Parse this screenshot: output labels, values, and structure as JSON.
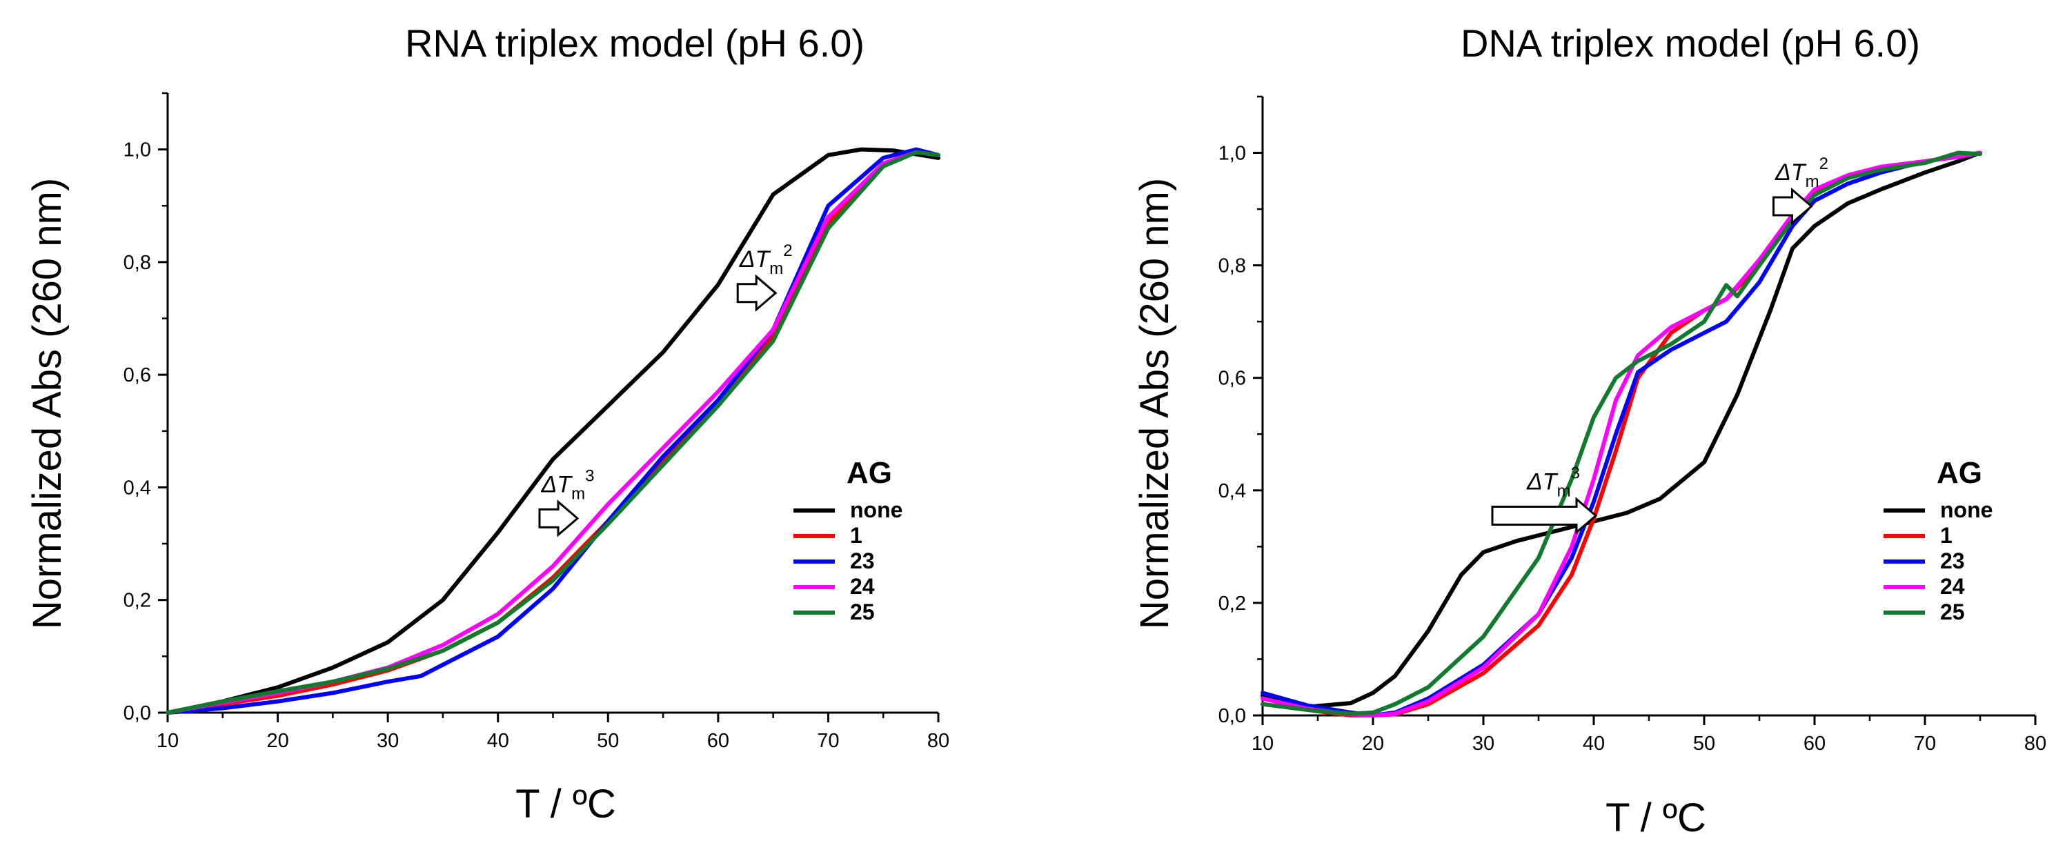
{
  "chart_data": [
    {
      "type": "line",
      "title": "RNA triplex model (pH 6.0)",
      "xlabel": "T / ºC",
      "ylabel": "Normalized Abs (260 nm)",
      "xlim": [
        10,
        80
      ],
      "ylim": [
        0,
        1.1
      ],
      "xticks": [
        "10",
        "20",
        "30",
        "40",
        "50",
        "60",
        "70",
        "80"
      ],
      "yticks": [
        "0,0",
        "0,2",
        "0,4",
        "0,6",
        "0,8",
        "1,0"
      ],
      "legend_title": "AG",
      "annotations": [
        {
          "label": "ΔT",
          "sub": "m",
          "sup": "2",
          "x": 63.5,
          "y": 0.745
        },
        {
          "label": "ΔT",
          "sub": "m",
          "sup": "3",
          "x": 45.5,
          "y": 0.345
        }
      ],
      "series": [
        {
          "name": "none",
          "color": "#000000",
          "x": [
            10,
            15,
            20,
            25,
            30,
            35,
            40,
            45,
            50,
            55,
            60,
            65,
            70,
            73,
            76,
            80
          ],
          "values": [
            0.0,
            0.02,
            0.045,
            0.08,
            0.125,
            0.2,
            0.32,
            0.45,
            0.545,
            0.64,
            0.76,
            0.92,
            0.99,
            1.0,
            0.998,
            0.985
          ]
        },
        {
          "name": "1",
          "color": "#ff0000",
          "x": [
            10,
            15,
            20,
            25,
            30,
            35,
            40,
            45,
            50,
            55,
            60,
            65,
            70,
            75,
            78,
            80
          ],
          "values": [
            0.0,
            0.015,
            0.03,
            0.05,
            0.075,
            0.11,
            0.16,
            0.24,
            0.34,
            0.45,
            0.55,
            0.67,
            0.87,
            0.975,
            0.995,
            0.99
          ]
        },
        {
          "name": "23",
          "color": "#0000ff",
          "x": [
            10,
            15,
            20,
            25,
            30,
            33,
            35,
            40,
            45,
            50,
            55,
            60,
            65,
            70,
            75,
            78,
            80
          ],
          "values": [
            0.0,
            0.008,
            0.02,
            0.035,
            0.055,
            0.065,
            0.085,
            0.135,
            0.22,
            0.34,
            0.455,
            0.555,
            0.68,
            0.9,
            0.985,
            1.0,
            0.99
          ]
        },
        {
          "name": "24",
          "color": "#ff00ff",
          "x": [
            10,
            15,
            20,
            25,
            30,
            35,
            40,
            45,
            50,
            55,
            60,
            65,
            70,
            75,
            78,
            80
          ],
          "values": [
            0.0,
            0.018,
            0.035,
            0.055,
            0.08,
            0.12,
            0.175,
            0.26,
            0.37,
            0.47,
            0.57,
            0.68,
            0.88,
            0.975,
            0.995,
            0.99
          ]
        },
        {
          "name": "25",
          "color": "#117a2e",
          "x": [
            10,
            15,
            20,
            25,
            30,
            35,
            40,
            45,
            50,
            55,
            60,
            65,
            70,
            75,
            78,
            80
          ],
          "values": [
            0.0,
            0.02,
            0.038,
            0.055,
            0.078,
            0.11,
            0.16,
            0.235,
            0.335,
            0.44,
            0.545,
            0.66,
            0.86,
            0.97,
            0.995,
            0.99
          ]
        }
      ]
    },
    {
      "type": "line",
      "title": "DNA triplex model (pH 6.0)",
      "xlabel": "T / ºC",
      "ylabel": "Normalized Abs (260 nm)",
      "xlim": [
        10,
        80
      ],
      "ylim": [
        0,
        1.1
      ],
      "xticks": [
        "10",
        "20",
        "30",
        "40",
        "50",
        "60",
        "70",
        "80"
      ],
      "yticks": [
        "0,0",
        "0,2",
        "0,4",
        "0,6",
        "0,8",
        "1,0"
      ],
      "legend_title": "AG",
      "annotations": [
        {
          "label": "ΔT",
          "sub": "m",
          "sup": "2",
          "x": 58.0,
          "y": 0.905
        },
        {
          "label": "ΔT",
          "sub": "m",
          "sup": "3",
          "x": 35.5,
          "y": 0.355
        }
      ],
      "series": [
        {
          "name": "none",
          "color": "#000000",
          "x": [
            10,
            14,
            18,
            20,
            22,
            25,
            28,
            30,
            33,
            36,
            40,
            43,
            46,
            50,
            53,
            56,
            58,
            60,
            63,
            66,
            70,
            73,
            75
          ],
          "values": [
            0.035,
            0.015,
            0.022,
            0.04,
            0.07,
            0.15,
            0.25,
            0.29,
            0.31,
            0.325,
            0.345,
            0.36,
            0.385,
            0.45,
            0.57,
            0.72,
            0.83,
            0.87,
            0.91,
            0.935,
            0.965,
            0.985,
            1.0
          ]
        },
        {
          "name": "1",
          "color": "#ff0000",
          "x": [
            10,
            14,
            18,
            20,
            22,
            25,
            30,
            35,
            38,
            40,
            42,
            44,
            47,
            50,
            52,
            55,
            58,
            60,
            63,
            66,
            70,
            73,
            75
          ],
          "values": [
            0.02,
            0.01,
            0.0,
            0.0,
            0.002,
            0.02,
            0.075,
            0.16,
            0.25,
            0.35,
            0.47,
            0.6,
            0.68,
            0.72,
            0.74,
            0.8,
            0.885,
            0.93,
            0.96,
            0.975,
            0.985,
            0.993,
            1.0
          ]
        },
        {
          "name": "23",
          "color": "#0000ff",
          "x": [
            10,
            14,
            18,
            20,
            22,
            25,
            30,
            35,
            38,
            40,
            42,
            44,
            47,
            50,
            52,
            55,
            58,
            60,
            63,
            66,
            70,
            73,
            75
          ],
          "values": [
            0.04,
            0.018,
            0.005,
            0.0,
            0.005,
            0.03,
            0.09,
            0.18,
            0.28,
            0.38,
            0.5,
            0.61,
            0.65,
            0.68,
            0.7,
            0.77,
            0.87,
            0.915,
            0.945,
            0.965,
            0.985,
            0.993,
            1.0
          ]
        },
        {
          "name": "24",
          "color": "#ff00ff",
          "x": [
            10,
            14,
            18,
            20,
            22,
            25,
            30,
            35,
            38,
            40,
            42,
            44,
            47,
            50,
            52,
            55,
            58,
            60,
            63,
            66,
            70,
            73,
            75
          ],
          "values": [
            0.03,
            0.012,
            0.002,
            0.0,
            0.003,
            0.025,
            0.085,
            0.18,
            0.3,
            0.42,
            0.56,
            0.64,
            0.69,
            0.72,
            0.74,
            0.81,
            0.89,
            0.935,
            0.96,
            0.975,
            0.985,
            0.993,
            1.0
          ]
        },
        {
          "name": "25",
          "color": "#117a2e",
          "x": [
            10,
            14,
            18,
            20,
            22,
            25,
            30,
            35,
            38,
            40,
            42,
            44,
            47,
            50,
            52,
            53,
            55,
            58,
            60,
            63,
            66,
            70,
            73,
            75
          ],
          "values": [
            0.02,
            0.01,
            0.003,
            0.005,
            0.02,
            0.05,
            0.14,
            0.28,
            0.42,
            0.53,
            0.6,
            0.63,
            0.66,
            0.7,
            0.765,
            0.745,
            0.8,
            0.88,
            0.925,
            0.955,
            0.97,
            0.982,
            1.0,
            0.998
          ]
        }
      ]
    }
  ]
}
